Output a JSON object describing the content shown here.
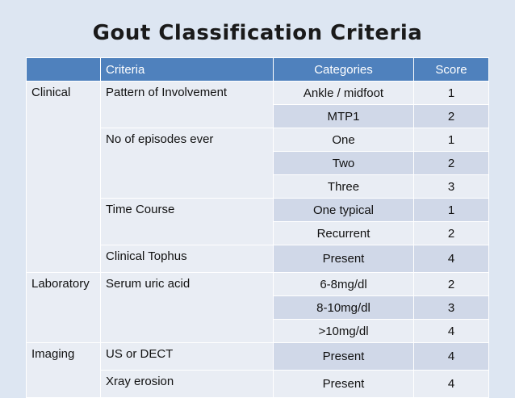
{
  "title": "Gout Classification Criteria",
  "table": {
    "headers": [
      "",
      "Criteria",
      "Categories",
      "Score"
    ],
    "rows": [
      {
        "group": "Clinical",
        "criteria": "Pattern of Involvement",
        "category": "Ankle / midfoot",
        "score": "1"
      },
      {
        "group": "",
        "criteria": "",
        "category": "MTP1",
        "score": "2"
      },
      {
        "group": "",
        "criteria": "No of episodes ever",
        "category": "One",
        "score": "1"
      },
      {
        "group": "",
        "criteria": "",
        "category": "Two",
        "score": "2"
      },
      {
        "group": "",
        "criteria": "",
        "category": "Three",
        "score": "3"
      },
      {
        "group": "",
        "criteria": "Time Course",
        "category": "One typical",
        "score": "1"
      },
      {
        "group": "",
        "criteria": "",
        "category": "Recurrent",
        "score": "2"
      },
      {
        "group": "",
        "criteria": "Clinical Tophus",
        "category": "Present",
        "score": "4"
      },
      {
        "group": "Laboratory",
        "criteria": "Serum uric acid",
        "category": "6-8mg/dl",
        "score": "2"
      },
      {
        "group": "",
        "criteria": "",
        "category": "8-10mg/dl",
        "score": "3"
      },
      {
        "group": "",
        "criteria": "",
        "category": ">10mg/dl",
        "score": "4"
      },
      {
        "group": "Imaging",
        "criteria": "US or DECT",
        "category": "Present",
        "score": "4"
      },
      {
        "group": "",
        "criteria": "Xray erosion",
        "category": "Present",
        "score": "4"
      }
    ]
  }
}
